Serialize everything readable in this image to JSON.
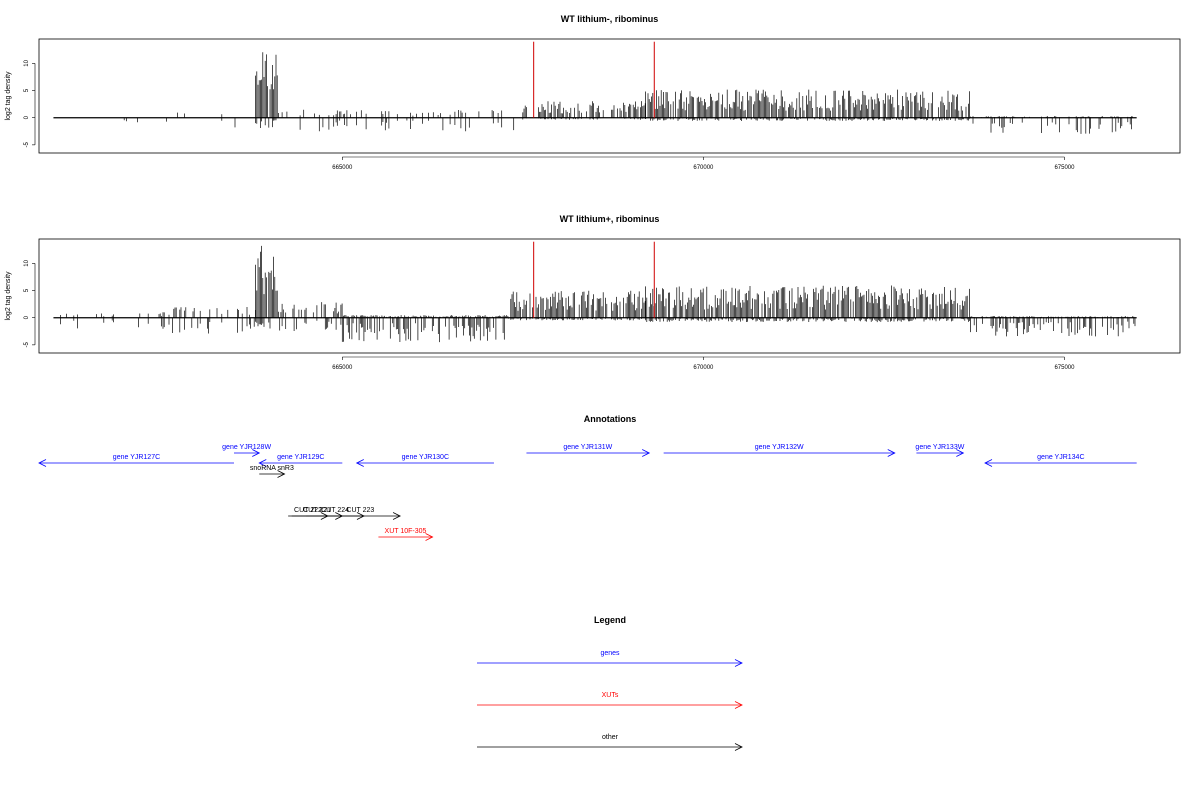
{
  "chart_data": [
    {
      "type": "bar",
      "title": "WT lithium-, ribominus",
      "ylabel": "log2 tag density",
      "xlim": [
        660800,
        676600
      ],
      "ylim": [
        -6.5,
        14.5
      ],
      "yticks": [
        -5,
        0,
        5,
        10
      ],
      "xticks": [
        665000,
        670000,
        675000
      ],
      "signal_x_range": [
        661000,
        676000
      ],
      "red_markers_x": [
        667650,
        669320
      ],
      "red_marker_height": 14,
      "segments": [
        {
          "start": 661000,
          "end": 662500,
          "pos": 0.0,
          "neg": 1.5,
          "density": 0.08
        },
        {
          "start": 662500,
          "end": 663800,
          "pos": 1.2,
          "neg": 1.8,
          "density": 0.1
        },
        {
          "start": 663800,
          "end": 664100,
          "pos": 12.5,
          "neg": 2.0,
          "density": 1.0
        },
        {
          "start": 664100,
          "end": 667500,
          "pos": 1.5,
          "neg": 2.5,
          "density": 0.3
        },
        {
          "start": 667500,
          "end": 669200,
          "pos": 3.2,
          "neg": 0.4,
          "density": 0.7
        },
        {
          "start": 669200,
          "end": 673700,
          "pos": 5.2,
          "neg": 0.6,
          "density": 0.95
        },
        {
          "start": 673700,
          "end": 676000,
          "pos": 0.3,
          "neg": 3.0,
          "density": 0.45
        }
      ]
    },
    {
      "type": "bar",
      "title": "WT lithium+, ribominus",
      "ylabel": "log2 tag density",
      "xlim": [
        660800,
        676600
      ],
      "ylim": [
        -6.5,
        14.5
      ],
      "yticks": [
        -5,
        0,
        5,
        10
      ],
      "xticks": [
        665000,
        670000,
        675000
      ],
      "signal_x_range": [
        661000,
        676000
      ],
      "red_markers_x": [
        667650,
        669320
      ],
      "red_marker_height": 14,
      "segments": [
        {
          "start": 661000,
          "end": 662500,
          "pos": 0.8,
          "neg": 2.0,
          "density": 0.25
        },
        {
          "start": 662500,
          "end": 663800,
          "pos": 2.0,
          "neg": 3.0,
          "density": 0.4
        },
        {
          "start": 663800,
          "end": 664100,
          "pos": 13.5,
          "neg": 2.0,
          "density": 1.0
        },
        {
          "start": 664100,
          "end": 665000,
          "pos": 3.0,
          "neg": 2.5,
          "density": 0.5
        },
        {
          "start": 665000,
          "end": 667300,
          "pos": 0.5,
          "neg": 4.5,
          "density": 0.95
        },
        {
          "start": 667300,
          "end": 669200,
          "pos": 5.0,
          "neg": 0.5,
          "density": 0.9
        },
        {
          "start": 669200,
          "end": 673700,
          "pos": 6.0,
          "neg": 0.8,
          "density": 0.97
        },
        {
          "start": 673700,
          "end": 676000,
          "pos": 0.3,
          "neg": 3.5,
          "density": 0.7
        }
      ]
    }
  ],
  "annotations": {
    "title": "Annotations",
    "items": [
      {
        "label": "gene YJR127C",
        "start": 660800,
        "end": 663500,
        "strand": "-",
        "row": 1,
        "color": "#0000ff"
      },
      {
        "label": "gene YJR128W",
        "start": 663500,
        "end": 663850,
        "strand": "+",
        "row": 0,
        "color": "#0000ff"
      },
      {
        "label": "gene YJR129C",
        "start": 663850,
        "end": 665000,
        "strand": "-",
        "row": 1,
        "color": "#0000ff"
      },
      {
        "label": "gene YJR130C",
        "start": 665200,
        "end": 667100,
        "strand": "-",
        "row": 1,
        "color": "#0000ff"
      },
      {
        "label": "gene YJR131W",
        "start": 667550,
        "end": 669250,
        "strand": "+",
        "row": 0,
        "color": "#0000ff"
      },
      {
        "label": "gene YJR132W",
        "start": 669450,
        "end": 672650,
        "strand": "+",
        "row": 0,
        "color": "#0000ff"
      },
      {
        "label": "gene YJR133W",
        "start": 672950,
        "end": 673600,
        "strand": "+",
        "row": 0,
        "color": "#0000ff"
      },
      {
        "label": "gene YJR134C",
        "start": 673900,
        "end": 676000,
        "strand": "-",
        "row": 1,
        "color": "#0000ff"
      },
      {
        "label": "snoRNA snR3",
        "start": 663850,
        "end": 664200,
        "strand": "+",
        "row": 2,
        "color": "#000000"
      },
      {
        "label": "CUT 222",
        "start": 664250,
        "end": 664800,
        "strand": "+",
        "row": 4,
        "color": "#000000"
      },
      {
        "label": "CUT 221",
        "start": 664300,
        "end": 665000,
        "strand": "+",
        "row": 4,
        "color": "#000000"
      },
      {
        "label": "CUT 224",
        "start": 664500,
        "end": 665300,
        "strand": "+",
        "row": 4,
        "color": "#000000"
      },
      {
        "label": "CUT 223",
        "start": 664700,
        "end": 665800,
        "strand": "+",
        "row": 4,
        "color": "#000000"
      },
      {
        "label": "XUT 10F-305",
        "start": 665500,
        "end": 666250,
        "strand": "+",
        "row": 5,
        "color": "#ff0000"
      }
    ]
  },
  "legend": {
    "title": "Legend",
    "items": [
      {
        "label": "genes",
        "color": "#0000ff"
      },
      {
        "label": "XUTs",
        "color": "#ff0000"
      },
      {
        "label": "other",
        "color": "#000000"
      }
    ]
  }
}
